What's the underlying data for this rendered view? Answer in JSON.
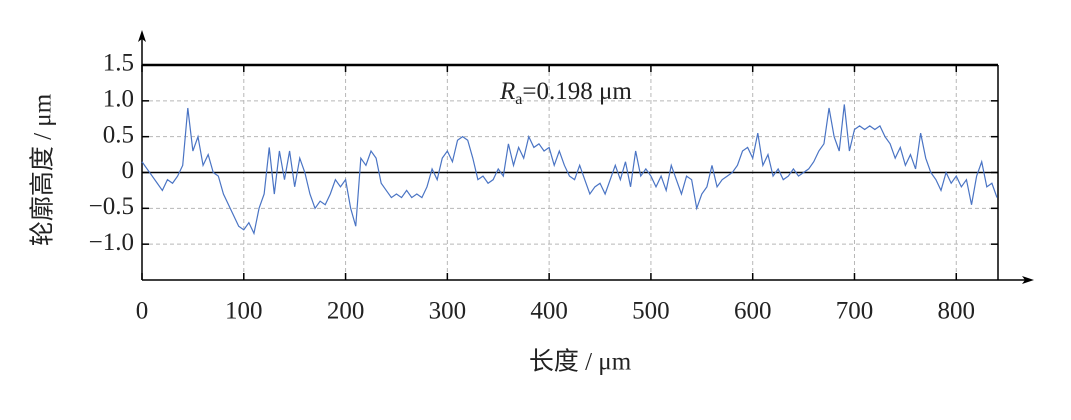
{
  "chart_data": {
    "type": "line",
    "ylabel": "轮廓高度 / μm",
    "xlabel": "长度 / μm",
    "annotation": {
      "symbol": "R",
      "subscript": "a",
      "text": "=0.198 μm"
    },
    "xlim": [
      0,
      841
    ],
    "ylim": [
      -1.5,
      1.5
    ],
    "xticks": [
      0,
      100,
      200,
      300,
      400,
      500,
      600,
      700,
      800
    ],
    "yticks": [
      {
        "value": -1,
        "label": "−1.0"
      },
      {
        "value": -0.5,
        "label": "−0.5"
      },
      0,
      {
        "value": 0.5,
        "label": "0.5"
      },
      {
        "value": 1,
        "label": "1.0"
      },
      {
        "value": 1.5,
        "label": "1.5"
      }
    ],
    "grid": true,
    "x": [
      0,
      5,
      10,
      15,
      20,
      25,
      30,
      35,
      40,
      45,
      50,
      55,
      60,
      65,
      70,
      75,
      80,
      85,
      90,
      95,
      100,
      105,
      110,
      115,
      120,
      125,
      130,
      135,
      140,
      145,
      150,
      155,
      160,
      165,
      170,
      175,
      180,
      185,
      190,
      195,
      200,
      205,
      210,
      215,
      220,
      225,
      230,
      235,
      240,
      245,
      250,
      255,
      260,
      265,
      270,
      275,
      280,
      285,
      290,
      295,
      300,
      305,
      310,
      315,
      320,
      325,
      330,
      335,
      340,
      345,
      350,
      355,
      360,
      365,
      370,
      375,
      380,
      385,
      390,
      395,
      400,
      405,
      410,
      415,
      420,
      425,
      430,
      435,
      440,
      445,
      450,
      455,
      460,
      465,
      470,
      475,
      480,
      485,
      490,
      495,
      500,
      505,
      510,
      515,
      520,
      525,
      530,
      535,
      540,
      545,
      550,
      555,
      560,
      565,
      570,
      575,
      580,
      585,
      590,
      595,
      600,
      605,
      610,
      615,
      620,
      625,
      630,
      635,
      640,
      645,
      650,
      655,
      660,
      665,
      670,
      675,
      680,
      685,
      690,
      695,
      700,
      705,
      710,
      715,
      720,
      725,
      730,
      735,
      740,
      745,
      750,
      755,
      760,
      765,
      770,
      775,
      780,
      785,
      790,
      795,
      800,
      805,
      810,
      815,
      820,
      825,
      830,
      835,
      840
    ],
    "series": [
      {
        "color": "#4a74c4",
        "values": [
          0.15,
          0.05,
          -0.05,
          -0.15,
          -0.25,
          -0.1,
          -0.15,
          -0.05,
          0.1,
          0.9,
          0.3,
          0.5,
          0.1,
          0.25,
          0.0,
          -0.05,
          -0.3,
          -0.45,
          -0.6,
          -0.75,
          -0.8,
          -0.7,
          -0.85,
          -0.5,
          -0.3,
          0.35,
          -0.3,
          0.3,
          -0.1,
          0.3,
          -0.2,
          0.2,
          0.0,
          -0.3,
          -0.5,
          -0.4,
          -0.45,
          -0.3,
          -0.1,
          -0.2,
          -0.1,
          -0.5,
          -0.75,
          0.2,
          0.1,
          0.3,
          0.2,
          -0.15,
          -0.25,
          -0.35,
          -0.3,
          -0.35,
          -0.25,
          -0.35,
          -0.3,
          -0.35,
          -0.2,
          0.05,
          -0.1,
          0.2,
          0.3,
          0.15,
          0.45,
          0.5,
          0.45,
          0.2,
          -0.1,
          -0.05,
          -0.15,
          -0.1,
          0.05,
          -0.05,
          0.4,
          0.1,
          0.35,
          0.2,
          0.5,
          0.35,
          0.4,
          0.3,
          0.35,
          0.1,
          0.3,
          0.1,
          -0.05,
          -0.1,
          0.1,
          -0.1,
          -0.3,
          -0.2,
          -0.15,
          -0.3,
          -0.1,
          0.1,
          -0.1,
          0.15,
          -0.2,
          0.3,
          -0.05,
          0.05,
          -0.05,
          -0.2,
          -0.05,
          -0.25,
          0.1,
          -0.1,
          -0.3,
          -0.05,
          -0.1,
          -0.5,
          -0.3,
          -0.2,
          0.1,
          -0.2,
          -0.1,
          -0.05,
          0.0,
          0.1,
          0.3,
          0.35,
          0.2,
          0.55,
          0.1,
          0.25,
          -0.05,
          0.05,
          -0.1,
          -0.05,
          0.05,
          -0.05,
          0.0,
          0.05,
          0.15,
          0.3,
          0.4,
          0.9,
          0.5,
          0.3,
          0.95,
          0.3,
          0.6,
          0.65,
          0.6,
          0.65,
          0.6,
          0.65,
          0.5,
          0.4,
          0.2,
          0.35,
          0.1,
          0.25,
          0.05,
          0.55,
          0.2,
          0.0,
          -0.1,
          -0.25,
          0.0,
          -0.15,
          -0.05,
          -0.2,
          -0.1,
          -0.45,
          -0.05,
          0.15,
          -0.2,
          -0.15,
          -0.35
        ]
      }
    ]
  }
}
